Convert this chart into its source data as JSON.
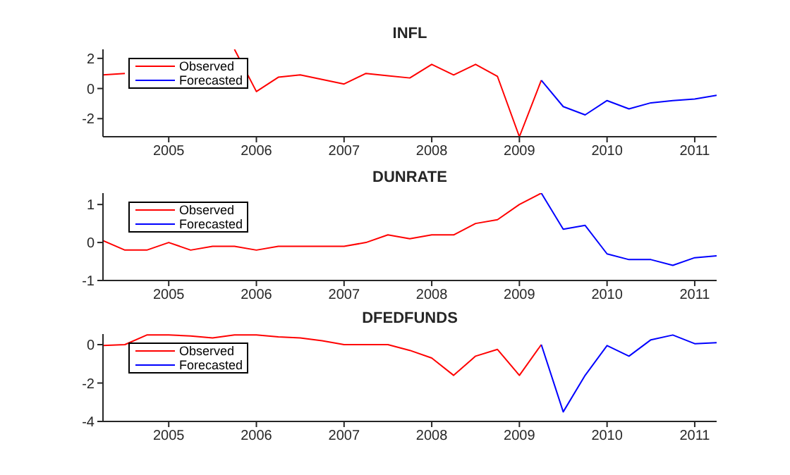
{
  "chart_data": [
    {
      "type": "line",
      "title": "INFL",
      "x": [
        2004.25,
        2004.5,
        2004.75,
        2005,
        2005.25,
        2005.5,
        2005.75,
        2006,
        2006.25,
        2006.5,
        2006.75,
        2007,
        2007.25,
        2007.5,
        2007.75,
        2008,
        2008.25,
        2008.5,
        2008.75,
        2009,
        2009.25,
        2009.5,
        2009.75,
        2010,
        2010.25,
        2010.5,
        2010.75,
        2011,
        2011.25
      ],
      "xlim": [
        2004.25,
        2011.25
      ],
      "xticks": [
        2005,
        2006,
        2007,
        2008,
        2009,
        2010,
        2011
      ],
      "ylim": [
        -3.2,
        2.6
      ],
      "yticks": [
        -2,
        0,
        2
      ],
      "legend": "top left",
      "marker": "none",
      "series": [
        {
          "name": "Observed",
          "color": "#ff0000",
          "values": [
            0.9,
            1.0,
            null,
            null,
            null,
            null,
            2.6,
            -0.2,
            0.75,
            0.9,
            0.6,
            0.3,
            1.0,
            0.85,
            0.7,
            1.6,
            0.9,
            1.6,
            0.8,
            -3.2,
            0.55,
            null,
            null,
            null,
            null,
            null,
            null,
            null,
            null
          ]
        },
        {
          "name": "Forecasted",
          "color": "#0000ff",
          "values": [
            null,
            null,
            null,
            null,
            null,
            null,
            null,
            null,
            null,
            null,
            null,
            null,
            null,
            null,
            null,
            null,
            null,
            null,
            null,
            null,
            0.55,
            -1.2,
            -1.75,
            -0.8,
            -1.35,
            -0.95,
            -0.8,
            -0.7,
            -0.45
          ]
        }
      ]
    },
    {
      "type": "line",
      "title": "DUNRATE",
      "x": [
        2004.25,
        2004.5,
        2004.75,
        2005,
        2005.25,
        2005.5,
        2005.75,
        2006,
        2006.25,
        2006.5,
        2006.75,
        2007,
        2007.25,
        2007.5,
        2007.75,
        2008,
        2008.25,
        2008.5,
        2008.75,
        2009,
        2009.25,
        2009.5,
        2009.75,
        2010,
        2010.25,
        2010.5,
        2010.75,
        2011,
        2011.25
      ],
      "xlim": [
        2004.25,
        2011.25
      ],
      "xticks": [
        2005,
        2006,
        2007,
        2008,
        2009,
        2010,
        2011
      ],
      "ylim": [
        -1,
        1.3
      ],
      "yticks": [
        -1,
        0,
        1
      ],
      "legend": "top left",
      "marker": "none",
      "series": [
        {
          "name": "Observed",
          "color": "#ff0000",
          "values": [
            0.05,
            -0.2,
            -0.2,
            0.0,
            -0.2,
            -0.1,
            -0.1,
            -0.2,
            -0.1,
            -0.1,
            -0.1,
            -0.1,
            0.0,
            0.2,
            0.1,
            0.2,
            0.2,
            0.5,
            0.6,
            1.0,
            1.3,
            null,
            null,
            null,
            null,
            null,
            null,
            null,
            null
          ]
        },
        {
          "name": "Forecasted",
          "color": "#0000ff",
          "values": [
            null,
            null,
            null,
            null,
            null,
            null,
            null,
            null,
            null,
            null,
            null,
            null,
            null,
            null,
            null,
            null,
            null,
            null,
            null,
            null,
            1.3,
            0.35,
            0.45,
            -0.3,
            -0.45,
            -0.45,
            -0.6,
            -0.4,
            -0.35
          ]
        }
      ]
    },
    {
      "type": "line",
      "title": "DFEDFUNDS",
      "x": [
        2004.25,
        2004.5,
        2004.75,
        2005,
        2005.25,
        2005.5,
        2005.75,
        2006,
        2006.25,
        2006.5,
        2006.75,
        2007,
        2007.25,
        2007.5,
        2007.75,
        2008,
        2008.25,
        2008.5,
        2008.75,
        2009,
        2009.25,
        2009.5,
        2009.75,
        2010,
        2010.25,
        2010.5,
        2010.75,
        2011,
        2011.25
      ],
      "xlim": [
        2004.25,
        2011.25
      ],
      "xticks": [
        2005,
        2006,
        2007,
        2008,
        2009,
        2010,
        2011
      ],
      "ylim": [
        -4,
        0.55
      ],
      "yticks": [
        -4,
        -2,
        0
      ],
      "legend": "top left",
      "marker": "none",
      "series": [
        {
          "name": "Observed",
          "color": "#ff0000",
          "values": [
            -0.05,
            0.0,
            0.5,
            0.5,
            0.45,
            0.35,
            0.5,
            0.5,
            0.4,
            0.35,
            0.2,
            0.0,
            0.0,
            0.0,
            -0.3,
            -0.7,
            -1.6,
            -0.6,
            -0.25,
            -1.6,
            0.0,
            null,
            null,
            null,
            null,
            null,
            null,
            null,
            null
          ]
        },
        {
          "name": "Forecasted",
          "color": "#0000ff",
          "values": [
            null,
            null,
            null,
            null,
            null,
            null,
            null,
            null,
            null,
            null,
            null,
            null,
            null,
            null,
            null,
            null,
            null,
            null,
            null,
            null,
            0.0,
            -3.5,
            -1.6,
            -0.05,
            -0.6,
            0.25,
            0.5,
            0.05,
            0.1
          ]
        }
      ]
    }
  ]
}
